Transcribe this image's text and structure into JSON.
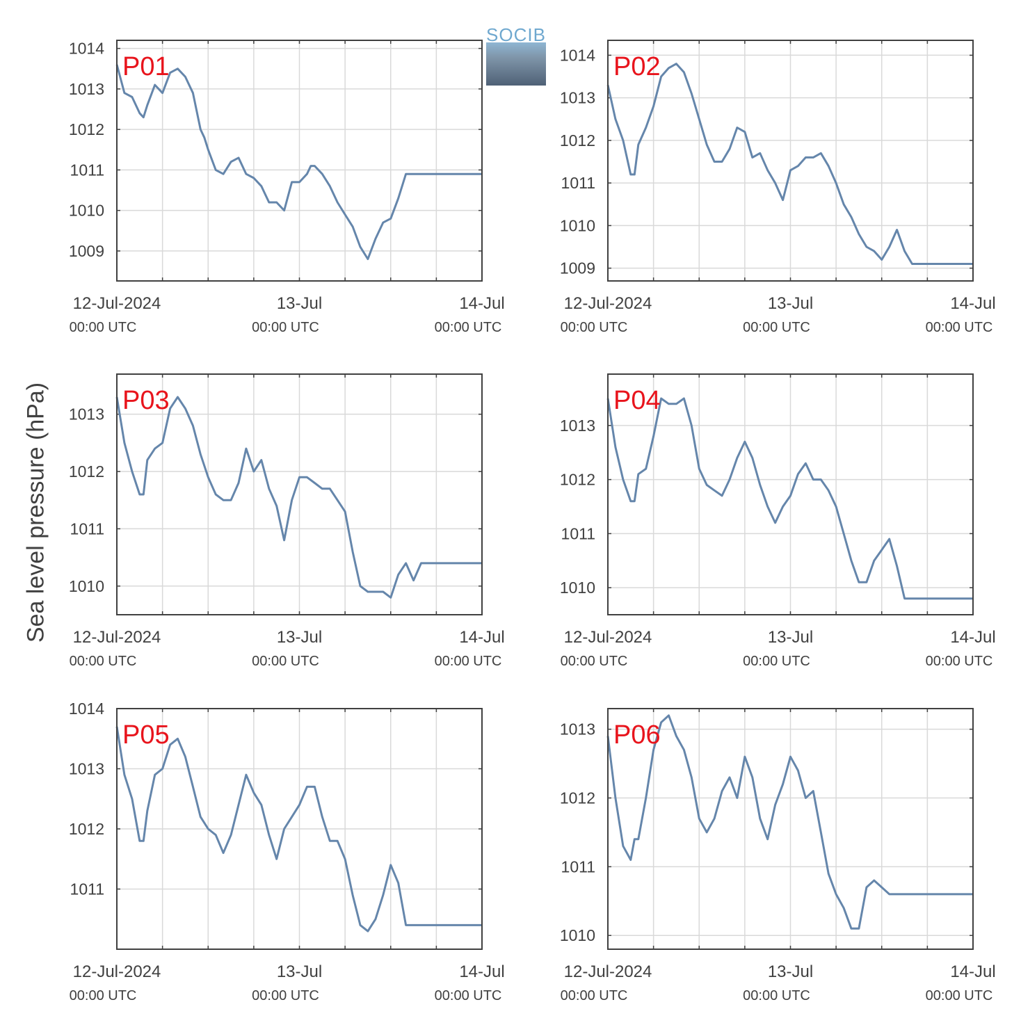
{
  "ylabel": "Sea level pressure (hPa)",
  "logo": {
    "text": "SOCIB"
  },
  "colors": {
    "line": "#6586ab",
    "label": "#e8141c",
    "grid": "#d9d9d9",
    "axis": "#404040",
    "text": "#404040"
  },
  "x_ticks": [
    {
      "pos": 0,
      "line1": "12-Jul-2024",
      "line2": "00:00 UTC"
    },
    {
      "pos": 24,
      "line1": "13-Jul",
      "line2": "00:00 UTC"
    },
    {
      "pos": 48,
      "line1": "14-Jul",
      "line2": "00:00 UTC"
    }
  ],
  "chart_data": [
    {
      "type": "line",
      "label": "P01",
      "x_unit": "hours since 12-Jul-2024 00:00 UTC",
      "xlim": [
        0,
        48
      ],
      "ylim": [
        1008.26,
        1014.2
      ],
      "yticks": [
        1009,
        1010,
        1011,
        1012,
        1013,
        1014
      ],
      "series": [
        {
          "x": [
            0,
            1,
            2,
            3,
            3.5,
            4,
            5,
            6,
            7,
            8,
            9,
            10,
            11,
            11.5,
            12,
            13,
            14,
            15,
            16,
            17,
            18,
            19,
            20,
            21,
            22,
            23,
            24,
            25,
            25.5,
            26,
            27,
            28,
            29,
            30,
            31,
            32,
            33,
            34,
            35,
            36,
            37,
            38,
            39,
            40,
            41,
            42,
            43,
            44,
            45,
            46,
            47,
            48
          ],
          "y": [
            1013.6,
            1012.9,
            1012.8,
            1012.4,
            1012.3,
            1012.6,
            1013.1,
            1012.9,
            1013.4,
            1013.5,
            1013.3,
            1012.9,
            1012.0,
            1011.8,
            1011.5,
            1011.0,
            1010.9,
            1011.2,
            1011.3,
            1010.9,
            1010.8,
            1010.6,
            1010.2,
            1010.2,
            1010.0,
            1010.7,
            1010.7,
            1010.9,
            1011.1,
            1011.1,
            1010.9,
            1010.6,
            1010.2,
            1009.9,
            1009.6,
            1009.1,
            1008.8,
            1009.3,
            1009.7,
            1009.8,
            1010.3,
            1010.9,
            1010.9,
            1010.9,
            1010.9,
            1010.9,
            1010.9,
            1010.9,
            1010.9,
            1010.9,
            1010.9,
            1010.9
          ]
        }
      ]
    },
    {
      "type": "line",
      "label": "P02",
      "x_unit": "hours since 12-Jul-2024 00:00 UTC",
      "xlim": [
        0,
        48
      ],
      "ylim": [
        1008.7,
        1014.35
      ],
      "yticks": [
        1009,
        1010,
        1011,
        1012,
        1013,
        1014
      ],
      "series": [
        {
          "x": [
            0,
            1,
            2,
            3,
            3.5,
            4,
            5,
            6,
            7,
            8,
            9,
            10,
            11,
            12,
            13,
            14,
            15,
            16,
            17,
            18,
            19,
            20,
            21,
            22,
            23,
            24,
            25,
            26,
            27,
            28,
            29,
            30,
            31,
            32,
            33,
            34,
            35,
            36,
            37,
            38,
            39,
            40,
            41,
            42,
            43,
            44,
            45,
            46,
            47,
            48
          ],
          "y": [
            1013.3,
            1012.5,
            1012.0,
            1011.2,
            1011.2,
            1011.9,
            1012.3,
            1012.8,
            1013.5,
            1013.7,
            1013.8,
            1013.6,
            1013.1,
            1012.5,
            1011.9,
            1011.5,
            1011.5,
            1011.8,
            1012.3,
            1012.2,
            1011.6,
            1011.7,
            1011.3,
            1011.0,
            1010.6,
            1011.3,
            1011.4,
            1011.6,
            1011.6,
            1011.7,
            1011.4,
            1011.0,
            1010.5,
            1010.2,
            1009.8,
            1009.5,
            1009.4,
            1009.2,
            1009.5,
            1009.9,
            1009.4,
            1009.1,
            1009.1,
            1009.1,
            1009.1,
            1009.1,
            1009.1,
            1009.1,
            1009.1,
            1009.1
          ]
        }
      ]
    },
    {
      "type": "line",
      "label": "P03",
      "x_unit": "hours since 12-Jul-2024 00:00 UTC",
      "xlim": [
        0,
        48
      ],
      "ylim": [
        1009.5,
        1013.7
      ],
      "yticks": [
        1010,
        1011,
        1012,
        1013
      ],
      "series": [
        {
          "x": [
            0,
            1,
            2,
            3,
            3.5,
            4,
            5,
            6,
            7,
            8,
            9,
            10,
            11,
            12,
            13,
            14,
            15,
            16,
            17,
            18,
            19,
            20,
            21,
            22,
            23,
            24,
            25,
            26,
            27,
            28,
            29,
            30,
            31,
            32,
            33,
            34,
            35,
            36,
            37,
            38,
            39,
            40,
            41,
            42,
            43,
            44,
            45,
            46,
            47,
            48
          ],
          "y": [
            1013.3,
            1012.5,
            1012.0,
            1011.6,
            1011.6,
            1012.2,
            1012.4,
            1012.5,
            1013.1,
            1013.3,
            1013.1,
            1012.8,
            1012.3,
            1011.9,
            1011.6,
            1011.5,
            1011.5,
            1011.8,
            1012.4,
            1012.0,
            1012.2,
            1011.7,
            1011.4,
            1010.8,
            1011.5,
            1011.9,
            1011.9,
            1011.8,
            1011.7,
            1011.7,
            1011.5,
            1011.3,
            1010.6,
            1010.0,
            1009.9,
            1009.9,
            1009.9,
            1009.8,
            1010.2,
            1010.4,
            1010.1,
            1010.4,
            1010.4,
            1010.4,
            1010.4,
            1010.4,
            1010.4,
            1010.4,
            1010.4,
            1010.4
          ]
        }
      ]
    },
    {
      "type": "line",
      "label": "P04",
      "x_unit": "hours since 12-Jul-2024 00:00 UTC",
      "xlim": [
        0,
        48
      ],
      "ylim": [
        1009.5,
        1013.95
      ],
      "yticks": [
        1010,
        1011,
        1012,
        1013
      ],
      "series": [
        {
          "x": [
            0,
            1,
            2,
            3,
            3.5,
            4,
            5,
            6,
            7,
            8,
            9,
            10,
            11,
            12,
            13,
            14,
            15,
            16,
            17,
            18,
            19,
            20,
            21,
            22,
            23,
            24,
            25,
            26,
            27,
            28,
            29,
            30,
            31,
            32,
            33,
            34,
            35,
            36,
            37,
            38,
            39,
            40,
            41,
            42,
            43,
            44,
            45,
            46,
            47,
            48
          ],
          "y": [
            1013.5,
            1012.6,
            1012.0,
            1011.6,
            1011.6,
            1012.1,
            1012.2,
            1012.8,
            1013.5,
            1013.4,
            1013.4,
            1013.5,
            1013.0,
            1012.2,
            1011.9,
            1011.8,
            1011.7,
            1012.0,
            1012.4,
            1012.7,
            1012.4,
            1011.9,
            1011.5,
            1011.2,
            1011.5,
            1011.7,
            1012.1,
            1012.3,
            1012.0,
            1012.0,
            1011.8,
            1011.5,
            1011.0,
            1010.5,
            1010.1,
            1010.1,
            1010.5,
            1010.7,
            1010.9,
            1010.4,
            1009.8,
            1009.8,
            1009.8,
            1009.8,
            1009.8,
            1009.8,
            1009.8,
            1009.8,
            1009.8,
            1009.8
          ]
        }
      ]
    },
    {
      "type": "line",
      "label": "P05",
      "x_unit": "hours since 12-Jul-2024 00:00 UTC",
      "xlim": [
        0,
        48
      ],
      "ylim": [
        1010.0,
        1014.0
      ],
      "yticks": [
        1011,
        1012,
        1013,
        1014
      ],
      "series": [
        {
          "x": [
            0,
            1,
            2,
            3,
            3.5,
            4,
            5,
            6,
            7,
            8,
            9,
            10,
            11,
            12,
            13,
            14,
            15,
            16,
            17,
            18,
            19,
            20,
            21,
            22,
            23,
            24,
            25,
            26,
            27,
            28,
            29,
            30,
            31,
            32,
            33,
            34,
            35,
            36,
            37,
            38,
            39,
            40,
            41,
            42,
            43,
            44,
            45,
            46,
            47,
            48
          ],
          "y": [
            1013.7,
            1012.9,
            1012.5,
            1011.8,
            1011.8,
            1012.3,
            1012.9,
            1013.0,
            1013.4,
            1013.5,
            1013.2,
            1012.7,
            1012.2,
            1012.0,
            1011.9,
            1011.6,
            1011.9,
            1012.4,
            1012.9,
            1012.6,
            1012.4,
            1011.9,
            1011.5,
            1012.0,
            1012.2,
            1012.4,
            1012.7,
            1012.7,
            1012.2,
            1011.8,
            1011.8,
            1011.5,
            1010.9,
            1010.4,
            1010.3,
            1010.5,
            1010.9,
            1011.4,
            1011.1,
            1010.4,
            1010.4,
            1010.4,
            1010.4,
            1010.4,
            1010.4,
            1010.4,
            1010.4,
            1010.4,
            1010.4,
            1010.4
          ]
        }
      ]
    },
    {
      "type": "line",
      "label": "P06",
      "x_unit": "hours since 12-Jul-2024 00:00 UTC",
      "xlim": [
        0,
        48
      ],
      "ylim": [
        1009.8,
        1013.3
      ],
      "yticks": [
        1010,
        1011,
        1012,
        1013
      ],
      "series": [
        {
          "x": [
            0,
            1,
            2,
            3,
            3.5,
            4,
            5,
            6,
            7,
            8,
            9,
            10,
            11,
            12,
            13,
            14,
            15,
            16,
            17,
            18,
            19,
            20,
            21,
            22,
            23,
            24,
            25,
            26,
            27,
            28,
            29,
            30,
            31,
            32,
            33,
            34,
            35,
            36,
            37,
            38,
            39,
            40,
            41,
            42,
            43,
            44,
            45,
            46,
            47,
            48
          ],
          "y": [
            1012.9,
            1012.0,
            1011.3,
            1011.1,
            1011.4,
            1011.4,
            1012.0,
            1012.7,
            1013.1,
            1013.2,
            1012.9,
            1012.7,
            1012.3,
            1011.7,
            1011.5,
            1011.7,
            1012.1,
            1012.3,
            1012.0,
            1012.6,
            1012.3,
            1011.7,
            1011.4,
            1011.9,
            1012.2,
            1012.6,
            1012.4,
            1012.0,
            1012.1,
            1011.5,
            1010.9,
            1010.6,
            1010.4,
            1010.1,
            1010.1,
            1010.7,
            1010.8,
            1010.7,
            1010.6,
            1010.6,
            1010.6,
            1010.6,
            1010.6,
            1010.6,
            1010.6,
            1010.6,
            1010.6,
            1010.6,
            1010.6,
            1010.6
          ]
        }
      ]
    }
  ]
}
